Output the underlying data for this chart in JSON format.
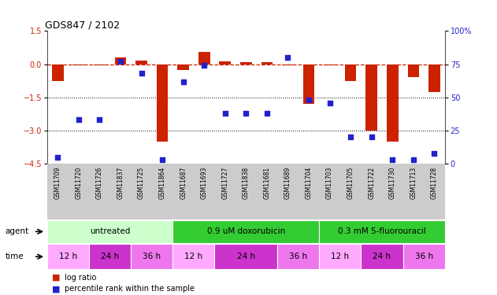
{
  "title": "GDS847 / 2102",
  "samples": [
    "GSM11709",
    "GSM11720",
    "GSM11726",
    "GSM11837",
    "GSM11725",
    "GSM11864",
    "GSM11687",
    "GSM11693",
    "GSM11727",
    "GSM11838",
    "GSM11681",
    "GSM11689",
    "GSM11704",
    "GSM11703",
    "GSM11705",
    "GSM11722",
    "GSM11730",
    "GSM11713",
    "GSM11728"
  ],
  "log_ratio": [
    -0.75,
    -0.05,
    -0.05,
    0.32,
    0.15,
    -3.5,
    -0.28,
    0.55,
    0.12,
    0.1,
    0.08,
    -0.05,
    -1.8,
    -0.05,
    -0.75,
    -3.0,
    -3.5,
    -0.6,
    -1.25
  ],
  "percentile": [
    5,
    33,
    33,
    77,
    68,
    3,
    62,
    74,
    38,
    38,
    38,
    80,
    48,
    46,
    20,
    20,
    3,
    3,
    8
  ],
  "ylim_left": [
    -4.5,
    1.5
  ],
  "ylim_right": [
    0,
    100
  ],
  "yticks_left": [
    1.5,
    0,
    -1.5,
    -3,
    -4.5
  ],
  "yticks_right": [
    100,
    75,
    50,
    25,
    0
  ],
  "ytick_labels_right": [
    "100%",
    "75",
    "50",
    "25",
    "0"
  ],
  "hlines": [
    -1.5,
    -3.0
  ],
  "agent_groups": [
    {
      "label": "untreated",
      "start": 0,
      "end": 6,
      "color": "#ccffcc"
    },
    {
      "label": "0.9 uM doxorubicin",
      "start": 6,
      "end": 13,
      "color": "#33cc33"
    },
    {
      "label": "0.3 mM 5-fluorouracil",
      "start": 13,
      "end": 19,
      "color": "#33cc33"
    }
  ],
  "time_colors": {
    "12 h": "#ffaaff",
    "24 h": "#cc33cc",
    "36 h": "#ee77ee"
  },
  "time_groups": [
    {
      "label": "12 h",
      "start": 0,
      "end": 2
    },
    {
      "label": "24 h",
      "start": 2,
      "end": 4
    },
    {
      "label": "36 h",
      "start": 4,
      "end": 6
    },
    {
      "label": "12 h",
      "start": 6,
      "end": 8
    },
    {
      "label": "24 h",
      "start": 8,
      "end": 11
    },
    {
      "label": "36 h",
      "start": 11,
      "end": 13
    },
    {
      "label": "12 h",
      "start": 13,
      "end": 15
    },
    {
      "label": "24 h",
      "start": 15,
      "end": 17
    },
    {
      "label": "36 h",
      "start": 17,
      "end": 19
    }
  ],
  "bar_color": "#cc2200",
  "dot_color": "#2222cc",
  "dashed_line_color": "#cc2200",
  "sample_bg_color": "#cccccc",
  "background_color": "#ffffff",
  "legend_items": [
    {
      "label": "log ratio",
      "color": "#cc2200"
    },
    {
      "label": "percentile rank within the sample",
      "color": "#2222cc"
    }
  ]
}
